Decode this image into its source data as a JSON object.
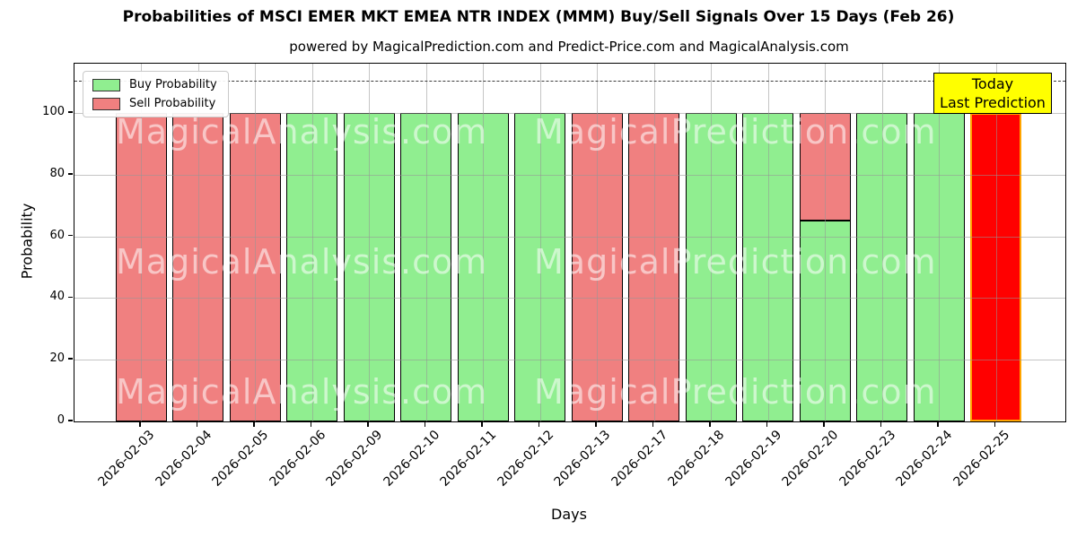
{
  "title": "Probabilities of MSCI EMER MKT EMEA NTR INDEX (MMM) Buy/Sell Signals Over 15 Days (Feb 26)",
  "subtitle": "powered by MagicalPrediction.com and Predict-Price.com and MagicalAnalysis.com",
  "legend": {
    "items": [
      {
        "label": "Buy Probability",
        "color": "#90EE90"
      },
      {
        "label": "Sell Probability",
        "color": "#F08080"
      }
    ]
  },
  "annotation_box": {
    "line1": "Today",
    "line2": "Last Prediction",
    "bg_color": "#FFFF00"
  },
  "watermarks": {
    "left": "MagicalAnalysis.com",
    "right": "MagicalPrediction.com"
  },
  "axes": {
    "ylabel": "Probability",
    "xlabel": "Days",
    "yticks": [
      0,
      20,
      40,
      60,
      80,
      100
    ],
    "dashed_line_y": 110
  },
  "chart_data": {
    "type": "bar",
    "stacked": true,
    "title": "Probabilities of MSCI EMER MKT EMEA NTR INDEX (MMM) Buy/Sell Signals Over 15 Days (Feb 26)",
    "xlabel": "Days",
    "ylabel": "Probability",
    "ylim": [
      0,
      116
    ],
    "grid": true,
    "legend_position": "upper left",
    "dashed_threshold_line_y": 110,
    "categories": [
      "2026-02-03",
      "2026-02-04",
      "2026-02-05",
      "2026-02-06",
      "2026-02-09",
      "2026-02-10",
      "2026-02-11",
      "2026-02-12",
      "2026-02-13",
      "2026-02-17",
      "2026-02-18",
      "2026-02-19",
      "2026-02-20",
      "2026-02-23",
      "2026-02-24",
      "2026-02-25"
    ],
    "series": [
      {
        "name": "Buy Probability",
        "color": "#90EE90",
        "edge_color": "#000000",
        "values": [
          0,
          0,
          0,
          100,
          100,
          100,
          100,
          100,
          0,
          0,
          100,
          100,
          65,
          100,
          100,
          0
        ]
      },
      {
        "name": "Sell Probability",
        "color": "#F08080",
        "edge_color": "#000000",
        "values": [
          100,
          100,
          100,
          0,
          0,
          0,
          0,
          0,
          100,
          100,
          0,
          0,
          35,
          0,
          0,
          0
        ]
      },
      {
        "name": "Last Prediction (Today)",
        "color": "#FF0000",
        "edge_color": "#FFA500",
        "values": [
          0,
          0,
          0,
          0,
          0,
          0,
          0,
          0,
          0,
          0,
          0,
          0,
          0,
          0,
          0,
          100
        ]
      }
    ]
  }
}
